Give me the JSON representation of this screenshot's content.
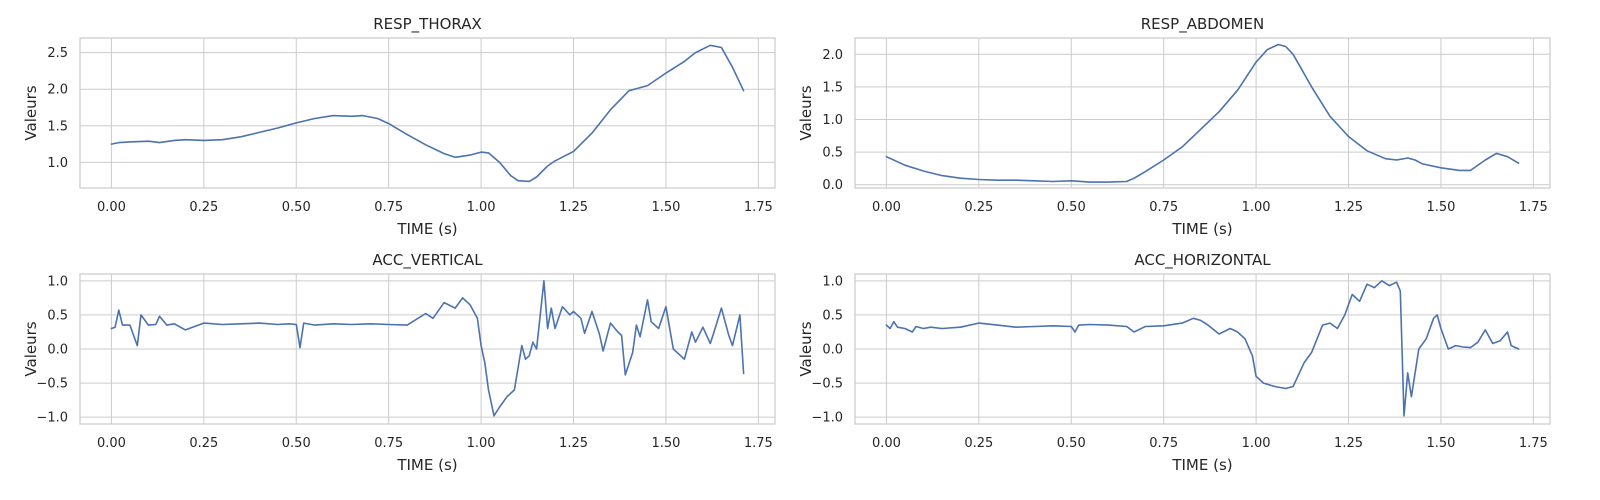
{
  "colors": {
    "series": "#4c72b0",
    "grid": "#cccccc",
    "text": "#262626"
  },
  "chart_data": [
    {
      "type": "line",
      "title": "RESP_THORAX",
      "xlabel": "TIME (s)",
      "ylabel": "Valeurs",
      "xlim": [
        -0.085,
        1.795
      ],
      "ylim": [
        0.65,
        2.7
      ],
      "xticks": [
        0,
        0.25,
        0.5,
        0.75,
        1.0,
        1.25,
        1.5,
        1.75
      ],
      "xtick_labels": [
        "0.00",
        "0.25",
        "0.50",
        "0.75",
        "1.00",
        "1.25",
        "1.50",
        "1.75"
      ],
      "yticks": [
        1.0,
        1.5,
        2.0,
        2.5
      ],
      "ytick_labels": [
        "1.0",
        "1.5",
        "2.0",
        "2.5"
      ],
      "grid": true,
      "series": [
        {
          "x": [
            0,
            0.02,
            0.05,
            0.1,
            0.13,
            0.17,
            0.2,
            0.25,
            0.3,
            0.35,
            0.4,
            0.45,
            0.5,
            0.55,
            0.6,
            0.65,
            0.68,
            0.72,
            0.75,
            0.8,
            0.85,
            0.9,
            0.93,
            0.97,
            1.0,
            1.02,
            1.05,
            1.08,
            1.1,
            1.13,
            1.15,
            1.18,
            1.2,
            1.25,
            1.3,
            1.35,
            1.4,
            1.45,
            1.5,
            1.55,
            1.58,
            1.62,
            1.65,
            1.68,
            1.71
          ],
          "y": [
            1.25,
            1.27,
            1.28,
            1.29,
            1.27,
            1.3,
            1.31,
            1.3,
            1.31,
            1.35,
            1.41,
            1.47,
            1.54,
            1.6,
            1.64,
            1.63,
            1.64,
            1.6,
            1.53,
            1.38,
            1.24,
            1.12,
            1.07,
            1.1,
            1.14,
            1.13,
            1.0,
            0.82,
            0.75,
            0.74,
            0.8,
            0.95,
            1.02,
            1.15,
            1.4,
            1.72,
            1.98,
            2.05,
            2.22,
            2.38,
            2.5,
            2.6,
            2.57,
            2.3,
            1.98
          ]
        }
      ]
    },
    {
      "type": "line",
      "title": "RESP_ABDOMEN",
      "xlabel": "TIME (s)",
      "ylabel": "Valeurs",
      "xlim": [
        -0.085,
        1.795
      ],
      "ylim": [
        -0.05,
        2.25
      ],
      "xticks": [
        0,
        0.25,
        0.5,
        0.75,
        1.0,
        1.25,
        1.5,
        1.75
      ],
      "xtick_labels": [
        "0.00",
        "0.25",
        "0.50",
        "0.75",
        "1.00",
        "1.25",
        "1.50",
        "1.75"
      ],
      "yticks": [
        0.0,
        0.5,
        1.0,
        1.5,
        2.0
      ],
      "ytick_labels": [
        "0.0",
        "0.5",
        "1.0",
        "1.5",
        "2.0"
      ],
      "grid": true,
      "series": [
        {
          "x": [
            0,
            0.05,
            0.1,
            0.15,
            0.2,
            0.25,
            0.3,
            0.35,
            0.4,
            0.45,
            0.5,
            0.55,
            0.6,
            0.65,
            0.67,
            0.7,
            0.75,
            0.8,
            0.85,
            0.9,
            0.95,
            1.0,
            1.03,
            1.06,
            1.08,
            1.1,
            1.15,
            1.2,
            1.25,
            1.3,
            1.35,
            1.38,
            1.41,
            1.43,
            1.45,
            1.5,
            1.55,
            1.58,
            1.62,
            1.65,
            1.68,
            1.71
          ],
          "y": [
            0.43,
            0.3,
            0.21,
            0.14,
            0.1,
            0.08,
            0.07,
            0.07,
            0.06,
            0.05,
            0.06,
            0.04,
            0.04,
            0.05,
            0.1,
            0.2,
            0.38,
            0.58,
            0.85,
            1.12,
            1.45,
            1.88,
            2.07,
            2.15,
            2.12,
            2.0,
            1.5,
            1.05,
            0.74,
            0.52,
            0.4,
            0.38,
            0.41,
            0.38,
            0.32,
            0.26,
            0.22,
            0.22,
            0.38,
            0.48,
            0.43,
            0.33
          ]
        }
      ]
    },
    {
      "type": "line",
      "title": "ACC_VERTICAL",
      "xlabel": "TIME (s)",
      "ylabel": "Valeurs",
      "xlim": [
        -0.085,
        1.795
      ],
      "ylim": [
        -1.1,
        1.1
      ],
      "xticks": [
        0,
        0.25,
        0.5,
        0.75,
        1.0,
        1.25,
        1.5,
        1.75
      ],
      "xtick_labels": [
        "0.00",
        "0.25",
        "0.50",
        "0.75",
        "1.00",
        "1.25",
        "1.50",
        "1.75"
      ],
      "yticks": [
        -1.0,
        -0.5,
        0.0,
        0.5,
        1.0
      ],
      "ytick_labels": [
        "−1.0",
        "−0.5",
        "0.0",
        "0.5",
        "1.0"
      ],
      "grid": true,
      "series": [
        {
          "x": [
            0,
            0.01,
            0.02,
            0.03,
            0.05,
            0.07,
            0.08,
            0.1,
            0.12,
            0.13,
            0.15,
            0.17,
            0.2,
            0.25,
            0.3,
            0.35,
            0.4,
            0.45,
            0.48,
            0.5,
            0.51,
            0.52,
            0.55,
            0.6,
            0.65,
            0.7,
            0.75,
            0.8,
            0.85,
            0.87,
            0.9,
            0.93,
            0.95,
            0.96,
            0.97,
            0.99,
            1.0,
            1.01,
            1.02,
            1.035,
            1.05,
            1.07,
            1.09,
            1.11,
            1.12,
            1.13,
            1.14,
            1.15,
            1.17,
            1.18,
            1.19,
            1.2,
            1.22,
            1.24,
            1.25,
            1.27,
            1.28,
            1.3,
            1.32,
            1.33,
            1.35,
            1.37,
            1.38,
            1.39,
            1.41,
            1.42,
            1.43,
            1.45,
            1.46,
            1.48,
            1.5,
            1.52,
            1.55,
            1.57,
            1.58,
            1.6,
            1.62,
            1.63,
            1.65,
            1.67,
            1.68,
            1.7,
            1.71
          ],
          "y": [
            0.3,
            0.32,
            0.57,
            0.35,
            0.35,
            0.05,
            0.5,
            0.35,
            0.36,
            0.48,
            0.35,
            0.37,
            0.28,
            0.38,
            0.36,
            0.37,
            0.38,
            0.36,
            0.37,
            0.36,
            0.02,
            0.38,
            0.35,
            0.37,
            0.36,
            0.37,
            0.36,
            0.35,
            0.52,
            0.45,
            0.68,
            0.6,
            0.75,
            0.7,
            0.65,
            0.45,
            0.05,
            -0.2,
            -0.6,
            -0.98,
            -0.85,
            -0.7,
            -0.6,
            0.05,
            -0.15,
            -0.1,
            0.1,
            0.0,
            1.0,
            0.3,
            0.6,
            0.3,
            0.62,
            0.5,
            0.55,
            0.45,
            0.23,
            0.55,
            0.22,
            -0.03,
            0.38,
            0.25,
            0.2,
            -0.38,
            -0.05,
            0.35,
            0.18,
            0.72,
            0.4,
            0.3,
            0.62,
            0.0,
            -0.15,
            0.25,
            0.1,
            0.32,
            0.08,
            0.25,
            0.6,
            0.2,
            0.05,
            0.5,
            -0.36
          ]
        }
      ]
    },
    {
      "type": "line",
      "title": "ACC_HORIZONTAL",
      "xlabel": "TIME (s)",
      "ylabel": "Valeurs",
      "xlim": [
        -0.085,
        1.795
      ],
      "ylim": [
        -1.1,
        1.1
      ],
      "xticks": [
        0,
        0.25,
        0.5,
        0.75,
        1.0,
        1.25,
        1.5,
        1.75
      ],
      "xtick_labels": [
        "0.00",
        "0.25",
        "0.50",
        "0.75",
        "1.00",
        "1.25",
        "1.50",
        "1.75"
      ],
      "yticks": [
        -1.0,
        -0.5,
        0.0,
        0.5,
        1.0
      ],
      "ytick_labels": [
        "−1.0",
        "−0.5",
        "0.0",
        "0.5",
        "1.0"
      ],
      "grid": true,
      "series": [
        {
          "x": [
            0,
            0.01,
            0.02,
            0.03,
            0.05,
            0.07,
            0.08,
            0.1,
            0.12,
            0.15,
            0.2,
            0.25,
            0.3,
            0.35,
            0.4,
            0.45,
            0.5,
            0.51,
            0.52,
            0.55,
            0.6,
            0.65,
            0.67,
            0.7,
            0.75,
            0.8,
            0.83,
            0.85,
            0.87,
            0.9,
            0.93,
            0.95,
            0.97,
            0.99,
            1.0,
            1.02,
            1.05,
            1.08,
            1.1,
            1.13,
            1.15,
            1.18,
            1.2,
            1.22,
            1.24,
            1.26,
            1.28,
            1.3,
            1.32,
            1.34,
            1.36,
            1.38,
            1.39,
            1.4,
            1.41,
            1.42,
            1.44,
            1.46,
            1.48,
            1.49,
            1.5,
            1.52,
            1.54,
            1.56,
            1.58,
            1.6,
            1.62,
            1.64,
            1.66,
            1.68,
            1.69,
            1.71
          ],
          "y": [
            0.35,
            0.3,
            0.4,
            0.32,
            0.3,
            0.25,
            0.33,
            0.3,
            0.32,
            0.3,
            0.32,
            0.38,
            0.35,
            0.32,
            0.33,
            0.34,
            0.33,
            0.25,
            0.35,
            0.36,
            0.35,
            0.33,
            0.25,
            0.33,
            0.34,
            0.38,
            0.45,
            0.42,
            0.35,
            0.22,
            0.3,
            0.25,
            0.15,
            -0.1,
            -0.4,
            -0.5,
            -0.55,
            -0.58,
            -0.55,
            -0.2,
            -0.05,
            0.35,
            0.38,
            0.3,
            0.5,
            0.8,
            0.7,
            0.95,
            0.9,
            1.0,
            0.93,
            0.98,
            0.85,
            -0.98,
            -0.35,
            -0.7,
            0.0,
            0.15,
            0.45,
            0.5,
            0.3,
            0.0,
            0.05,
            0.03,
            0.02,
            0.1,
            0.28,
            0.08,
            0.12,
            0.25,
            0.05,
            0.0
          ]
        }
      ]
    }
  ]
}
